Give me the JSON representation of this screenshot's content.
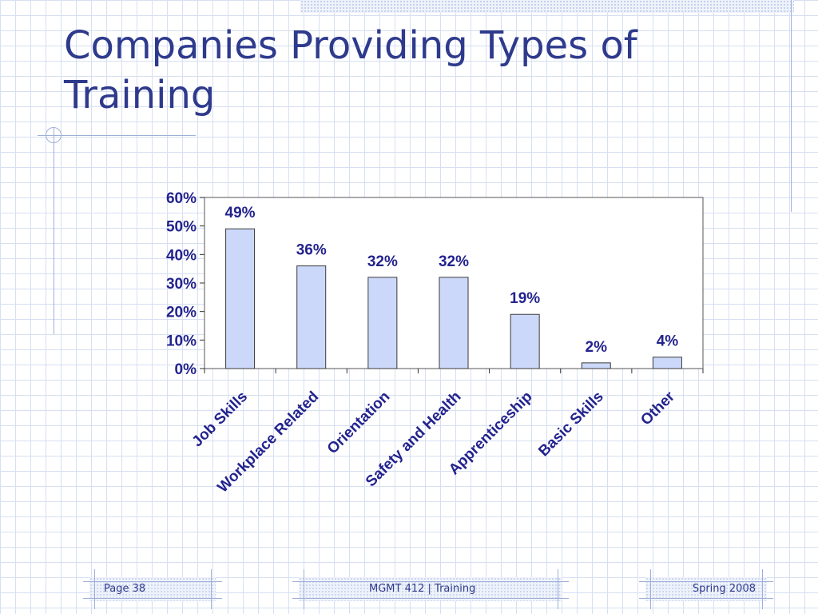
{
  "slide": {
    "title": "Companies Providing Types of Training"
  },
  "footer": {
    "page": "Page 38",
    "course": "MGMT 412  |  Training",
    "term": "Spring 2008"
  },
  "colors": {
    "bar_fill": "#ccd8fa",
    "bar_stroke": "#3a3a3a",
    "text": "#23238e",
    "title": "#2e3a8c"
  },
  "chart_data": {
    "type": "bar",
    "title": "",
    "xlabel": "",
    "ylabel": "",
    "categories": [
      "Job Skills",
      "Workplace Related",
      "Orientation",
      "Safety and Health",
      "Apprenticeship",
      "Basic Skills",
      "Other"
    ],
    "values": [
      49,
      36,
      32,
      32,
      19,
      2,
      4
    ],
    "data_labels": [
      "49%",
      "36%",
      "32%",
      "32%",
      "19%",
      "2%",
      "4%"
    ],
    "ylim": [
      0,
      60
    ],
    "yticks": [
      0,
      10,
      20,
      30,
      40,
      50,
      60
    ],
    "ytick_labels": [
      "0%",
      "10%",
      "20%",
      "30%",
      "40%",
      "50%",
      "60%"
    ],
    "grid": false,
    "legend": "none"
  }
}
